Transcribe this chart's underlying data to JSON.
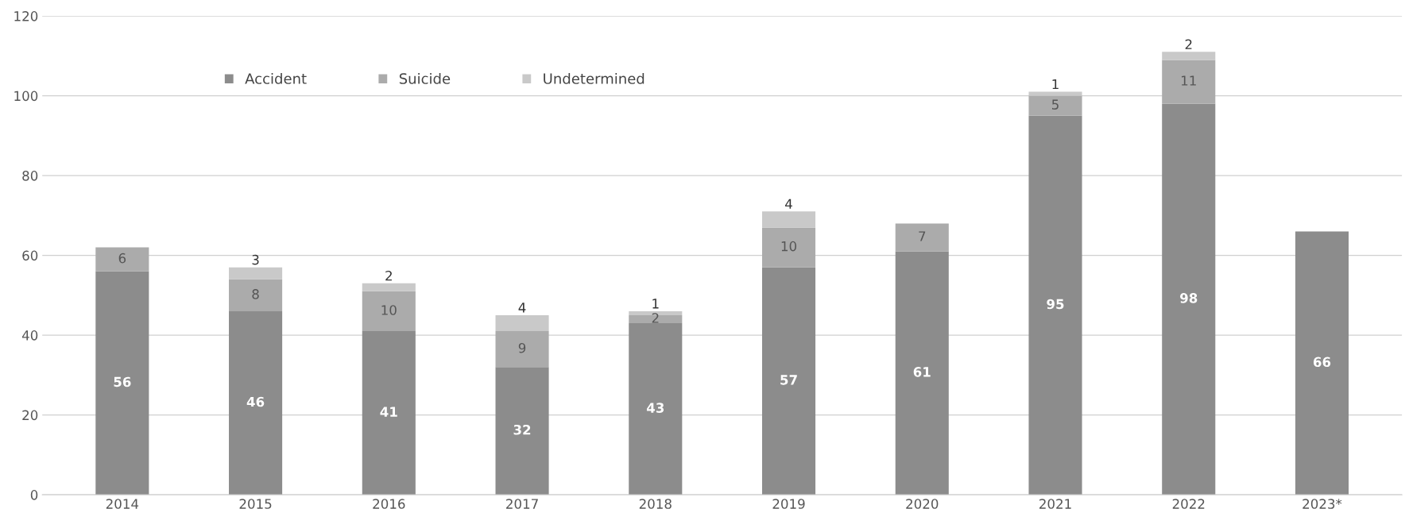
{
  "chart_data": {
    "type": "bar",
    "stacked": true,
    "categories": [
      "2014",
      "2015",
      "2016",
      "2017",
      "2018",
      "2019",
      "2020",
      "2021",
      "2022",
      "2023*"
    ],
    "series": [
      {
        "name": "Accident",
        "color": "#8c8c8c",
        "values": [
          56,
          46,
          41,
          32,
          43,
          57,
          61,
          95,
          98,
          66
        ]
      },
      {
        "name": "Suicide",
        "color": "#ababab",
        "values": [
          6,
          8,
          10,
          9,
          2,
          10,
          7,
          5,
          11,
          null
        ]
      },
      {
        "name": "Undetermined",
        "color": "#c9c9c9",
        "values": [
          null,
          3,
          2,
          4,
          1,
          4,
          null,
          1,
          2,
          null
        ]
      }
    ],
    "ylim": [
      0,
      120
    ],
    "yticks": [
      0,
      20,
      40,
      60,
      80,
      100,
      120
    ],
    "grid": "y",
    "legend": "top left",
    "data_labels": true
  }
}
